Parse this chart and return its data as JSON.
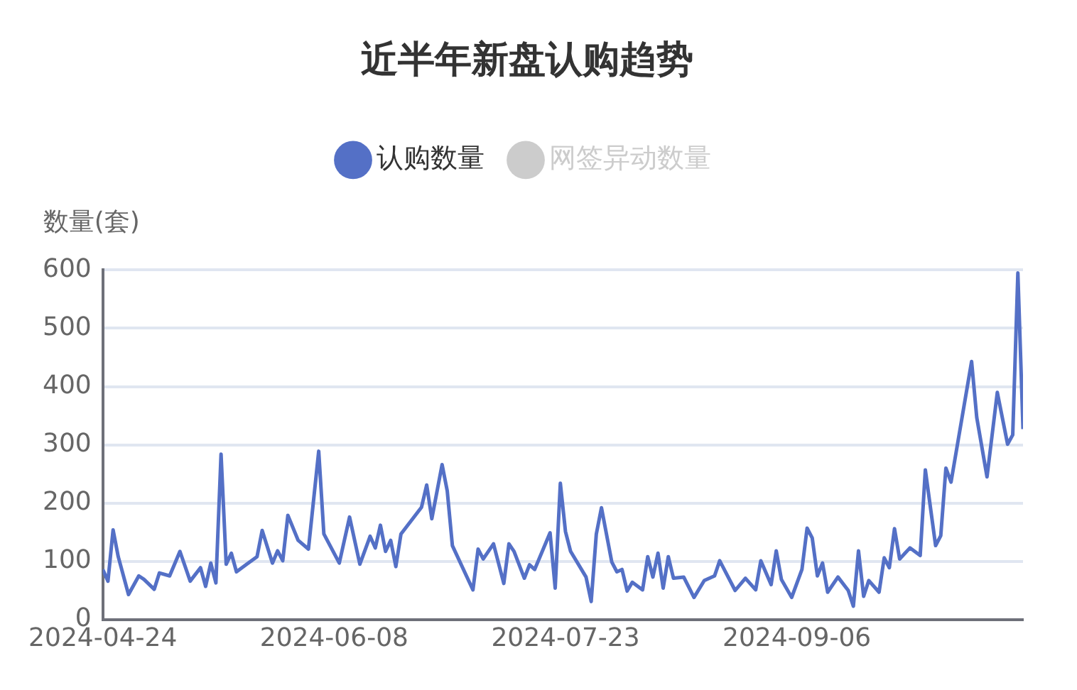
{
  "chart_data": {
    "type": "line",
    "title": "近半年新盘认购趋势",
    "ylabel": "数量(套)",
    "x": [
      "2024-04-24",
      "2024-04-25",
      "2024-04-26",
      "2024-04-27",
      "2024-04-29",
      "2024-05-01",
      "2024-05-02",
      "2024-05-04",
      "2024-05-05",
      "2024-05-07",
      "2024-05-09",
      "2024-05-11",
      "2024-05-13",
      "2024-05-14",
      "2024-05-15",
      "2024-05-16",
      "2024-05-17",
      "2024-05-18",
      "2024-05-19",
      "2024-05-20",
      "2024-05-22",
      "2024-05-24",
      "2024-05-25",
      "2024-05-27",
      "2024-05-28",
      "2024-05-29",
      "2024-05-30",
      "2024-06-01",
      "2024-06-03",
      "2024-06-05",
      "2024-06-06",
      "2024-06-09",
      "2024-06-11",
      "2024-06-13",
      "2024-06-15",
      "2024-06-16",
      "2024-06-17",
      "2024-06-18",
      "2024-06-19",
      "2024-06-20",
      "2024-06-21",
      "2024-06-25",
      "2024-06-26",
      "2024-06-27",
      "2024-06-29",
      "2024-06-30",
      "2024-07-01",
      "2024-07-05",
      "2024-07-06",
      "2024-07-07",
      "2024-07-09",
      "2024-07-11",
      "2024-07-12",
      "2024-07-13",
      "2024-07-15",
      "2024-07-16",
      "2024-07-17",
      "2024-07-20",
      "2024-07-21",
      "2024-07-22",
      "2024-07-23",
      "2024-07-24",
      "2024-07-27",
      "2024-07-28",
      "2024-07-29",
      "2024-07-30",
      "2024-08-01",
      "2024-08-02",
      "2024-08-03",
      "2024-08-04",
      "2024-08-05",
      "2024-08-07",
      "2024-08-08",
      "2024-08-09",
      "2024-08-10",
      "2024-08-11",
      "2024-08-12",
      "2024-08-13",
      "2024-08-15",
      "2024-08-17",
      "2024-08-19",
      "2024-08-21",
      "2024-08-22",
      "2024-08-25",
      "2024-08-27",
      "2024-08-29",
      "2024-08-30",
      "2024-09-01",
      "2024-09-02",
      "2024-09-03",
      "2024-09-05",
      "2024-09-07",
      "2024-09-08",
      "2024-09-09",
      "2024-09-10",
      "2024-09-11",
      "2024-09-12",
      "2024-09-14",
      "2024-09-16",
      "2024-09-17",
      "2024-09-18",
      "2024-09-19",
      "2024-09-20",
      "2024-09-22",
      "2024-09-23",
      "2024-09-24",
      "2024-09-25",
      "2024-09-26",
      "2024-09-28",
      "2024-09-30",
      "2024-10-01",
      "2024-10-03",
      "2024-10-04",
      "2024-10-05",
      "2024-10-06",
      "2024-10-10",
      "2024-10-11",
      "2024-10-13",
      "2024-10-15",
      "2024-10-17",
      "2024-10-18",
      "2024-10-19",
      "2024-10-20"
    ],
    "series": [
      {
        "name": "认购数量",
        "color": "#5470c6",
        "values": [
          86,
          66,
          154,
          108,
          43,
          75,
          69,
          52,
          80,
          75,
          117,
          66,
          89,
          57,
          97,
          63,
          284,
          95,
          114,
          82,
          95,
          108,
          153,
          97,
          118,
          101,
          179,
          136,
          121,
          289,
          147,
          97,
          176,
          95,
          143,
          123,
          162,
          117,
          136,
          91,
          147,
          193,
          231,
          173,
          266,
          221,
          127,
          51,
          121,
          104,
          130,
          62,
          130,
          117,
          71,
          94,
          86,
          149,
          54,
          234,
          151,
          117,
          73,
          31,
          147,
          192,
          99,
          82,
          86,
          49,
          64,
          51,
          108,
          73,
          114,
          54,
          108,
          71,
          73,
          38,
          67,
          75,
          101,
          50,
          71,
          51,
          101,
          60,
          118,
          69,
          38,
          86,
          157,
          140,
          75,
          97,
          47,
          73,
          50,
          23,
          118,
          40,
          67,
          47,
          106,
          89,
          156,
          104,
          123,
          110,
          257,
          127,
          144,
          260,
          236,
          443,
          347,
          245,
          390,
          301,
          317,
          595,
          327
        ]
      },
      {
        "name": "网签异动数量",
        "color": "#cccccc",
        "values": [
          null,
          null,
          null,
          null,
          null,
          null,
          null,
          null,
          null,
          null,
          null,
          null,
          null,
          null,
          null,
          null,
          null,
          null,
          null,
          null,
          null,
          null,
          null,
          null,
          null,
          null,
          null,
          null,
          null,
          null,
          null,
          null,
          null,
          null,
          null,
          null,
          null,
          null,
          null,
          null,
          null,
          null,
          null,
          null,
          null,
          null,
          null,
          null,
          null,
          null,
          null,
          null,
          null,
          null,
          null,
          null,
          null,
          null,
          null,
          null,
          null,
          null,
          null,
          null,
          null,
          null,
          null,
          null,
          null,
          null,
          null,
          null,
          null,
          null,
          null,
          null,
          null,
          null,
          null,
          null,
          null,
          null,
          null,
          null,
          null,
          null,
          null,
          null,
          null,
          null,
          null,
          null,
          null,
          null,
          null,
          null,
          null,
          null,
          null,
          null,
          null,
          null,
          null,
          null,
          null,
          null,
          null,
          null,
          null,
          null,
          null,
          null,
          null,
          null,
          null,
          null,
          null,
          null,
          null,
          null,
          null,
          null,
          null
        ]
      }
    ],
    "xlim": [
      "2024-04-24",
      "2024-10-20"
    ],
    "xticks": [
      {
        "value": "2024-04-24",
        "label": "2024-04-24"
      },
      {
        "value": "2024-06-08",
        "label": "2024-06-08"
      },
      {
        "value": "2024-07-23",
        "label": "2024-07-23"
      },
      {
        "value": "2024-09-06",
        "label": "2024-09-06"
      }
    ],
    "ylim": [
      0,
      600
    ],
    "yticks": [
      0,
      100,
      200,
      300,
      400,
      500,
      600
    ],
    "grid": "y",
    "legend": "top",
    "marker": "none",
    "line_style": "solid"
  }
}
